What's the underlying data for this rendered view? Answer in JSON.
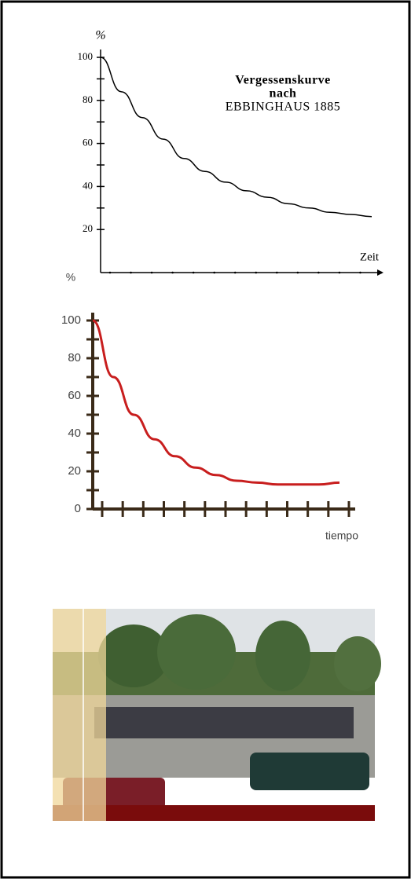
{
  "chart_data": [
    {
      "type": "line",
      "title": [
        "Vergessenskurve",
        "nach",
        "EBBINGHAUS 1885"
      ],
      "y_label": "%",
      "x_label": "Zeit",
      "categories": [
        null,
        null,
        null,
        null,
        null,
        null,
        null,
        null,
        null,
        null,
        null,
        null,
        null,
        null
      ],
      "series": [
        {
          "color": "#000000",
          "values": [
            100,
            84,
            72,
            62,
            53,
            47,
            42,
            38,
            35,
            32,
            30,
            28,
            27,
            26
          ]
        }
      ],
      "ylim": [
        0,
        100
      ],
      "yticks": [
        20,
        40,
        60,
        80,
        100
      ]
    },
    {
      "type": "line",
      "y_label": "%",
      "x_label": "tiempo",
      "categories": [
        null,
        null,
        null,
        null,
        null,
        null,
        null,
        null,
        null,
        null,
        null,
        null,
        null
      ],
      "series": [
        {
          "color": "#c81e1e",
          "values": [
            100,
            70,
            50,
            37,
            28,
            22,
            18,
            15,
            14,
            13,
            13,
            13,
            14
          ]
        }
      ],
      "ylim": [
        0,
        100
      ],
      "yticks": [
        0,
        20,
        40,
        60,
        80,
        100
      ]
    }
  ]
}
